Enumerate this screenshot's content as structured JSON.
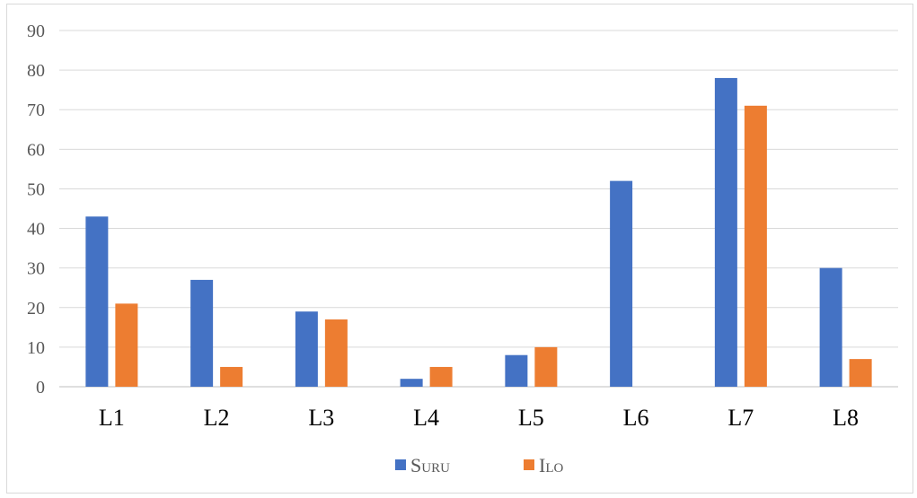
{
  "chart_data": {
    "type": "bar",
    "categories": [
      "L1",
      "L2",
      "L3",
      "L4",
      "L5",
      "L6",
      "L7",
      "L8"
    ],
    "series": [
      {
        "name": "Suru",
        "color": "#4472C4",
        "values": [
          43,
          27,
          19,
          2,
          8,
          52,
          78,
          30
        ]
      },
      {
        "name": "Ilo",
        "color": "#ED7D31",
        "values": [
          21,
          5,
          17,
          5,
          10,
          0,
          71,
          7
        ]
      }
    ],
    "title": "",
    "xlabel": "",
    "ylabel": "",
    "ylim": [
      0,
      90
    ],
    "yticks": [
      0,
      10,
      20,
      30,
      40,
      50,
      60,
      70,
      80,
      90
    ],
    "grid": true,
    "legend": "bottom"
  }
}
